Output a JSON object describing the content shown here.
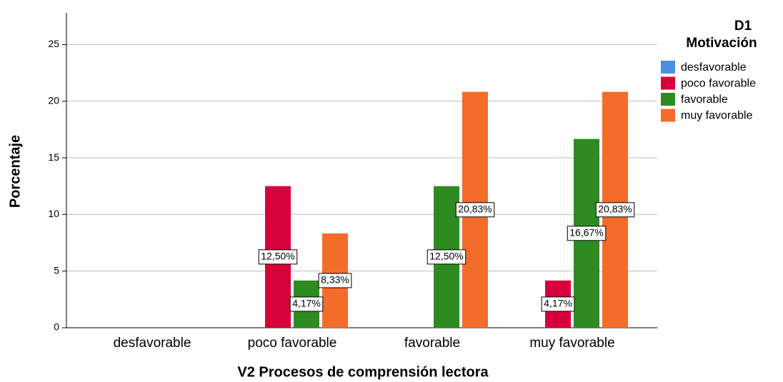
{
  "chart_data": {
    "type": "bar",
    "x_label": "V2 Procesos de comprensión lectora",
    "y_label": "Porcentaje",
    "legend_title": [
      "D1",
      "Motivación"
    ],
    "categories": [
      "desfavorable",
      "poco favorable",
      "favorable",
      "muy favorable"
    ],
    "series": [
      {
        "name": "desfavorable",
        "color": "#4a90e2",
        "values": [
          0,
          0,
          0,
          0
        ],
        "value_labels": [
          null,
          null,
          null,
          null
        ]
      },
      {
        "name": "poco favorable",
        "color": "#d6003a",
        "values": [
          0,
          12.5,
          0,
          4.17
        ],
        "value_labels": [
          null,
          "12,50%",
          null,
          "4,17%"
        ]
      },
      {
        "name": "favorable",
        "color": "#2e8b22",
        "values": [
          0,
          4.17,
          12.5,
          16.67
        ],
        "value_labels": [
          null,
          "4,17%",
          "12,50%",
          "16,67%"
        ]
      },
      {
        "name": "muy favorable",
        "color": "#f36c2a",
        "values": [
          0,
          8.33,
          20.83,
          20.83
        ],
        "value_labels": [
          null,
          "8,33%",
          "20,83%",
          "20,83%"
        ]
      }
    ],
    "ylim": [
      0,
      27.8
    ],
    "yticks": [
      0,
      5,
      10,
      15,
      20,
      25
    ],
    "grid": true,
    "legend": "right"
  }
}
